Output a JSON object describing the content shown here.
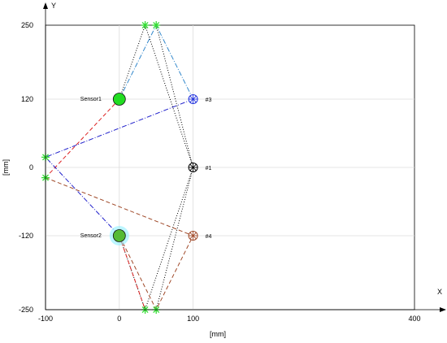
{
  "chart_data": {
    "type": "scatter",
    "title": "",
    "xlabel": "[mm]",
    "ylabel": "[mm]",
    "x_axis_name": "X",
    "y_axis_name": "Y",
    "xlim": [
      -100,
      400
    ],
    "ylim": [
      -250,
      250
    ],
    "x_ticks": [
      -100,
      0,
      100,
      400
    ],
    "y_ticks": [
      250,
      120,
      0,
      -120,
      -250
    ],
    "grid": true,
    "sensors": [
      {
        "label": "Sensor1",
        "x": 0,
        "y": 120,
        "color": "#22dd22"
      },
      {
        "label": "Sensor2",
        "x": 0,
        "y": -120,
        "color": "#55bb33",
        "halo": "#8ff0ff"
      }
    ],
    "targets": [
      {
        "label": "#3",
        "x": 100,
        "y": 120,
        "color": "#2233dd"
      },
      {
        "label": "#1",
        "x": 100,
        "y": 0,
        "color": "#000000"
      },
      {
        "label": "#4",
        "x": 100,
        "y": -120,
        "color": "#a04a2a"
      }
    ],
    "reflectors": [
      {
        "x": -100,
        "y": 18
      },
      {
        "x": -100,
        "y": -18
      },
      {
        "x": 35,
        "y": 250
      },
      {
        "x": 50,
        "y": 250
      },
      {
        "x": 35,
        "y": -250
      },
      {
        "x": 50,
        "y": -250
      }
    ],
    "paths": [
      {
        "name": "",
        "color": "#dd2222",
        "dash": "5,3",
        "points": [
          [
            0,
            120
          ],
          [
            -100,
            -18
          ]
        ]
      },
      {
        "name": "",
        "color": "#2222cc",
        "dash": "6,2,1,2",
        "points": [
          [
            100,
            120
          ],
          [
            -100,
            18
          ],
          [
            0,
            -120
          ]
        ]
      },
      {
        "name": "",
        "color": "#3388cc",
        "dash": "6,2,1,2",
        "points": [
          [
            0,
            120
          ],
          [
            50,
            250
          ],
          [
            100,
            120
          ]
        ]
      },
      {
        "name": "",
        "color": "#000000",
        "dash": "1,2",
        "points": [
          [
            35,
            250
          ],
          [
            100,
            0
          ],
          [
            50,
            -250
          ]
        ]
      },
      {
        "name": "",
        "color": "#000000",
        "dash": "1,2",
        "points": [
          [
            50,
            250
          ],
          [
            100,
            0
          ],
          [
            35,
            -250
          ]
        ]
      },
      {
        "name": "",
        "color": "#000000",
        "dash": "1,2",
        "points": [
          [
            0,
            120
          ],
          [
            35,
            250
          ]
        ]
      },
      {
        "name": "",
        "color": "#000000",
        "dash": "1,2",
        "points": [
          [
            0,
            -120
          ],
          [
            35,
            -250
          ]
        ]
      },
      {
        "name": "",
        "color": "#a04a2a",
        "dash": "5,3",
        "points": [
          [
            -100,
            -18
          ],
          [
            100,
            -120
          ],
          [
            50,
            -250
          ],
          [
            0,
            -120
          ]
        ]
      },
      {
        "name": "",
        "color": "#dd2222",
        "dash": "5,3",
        "points": [
          [
            0,
            -120
          ],
          [
            35,
            -250
          ]
        ]
      }
    ]
  }
}
